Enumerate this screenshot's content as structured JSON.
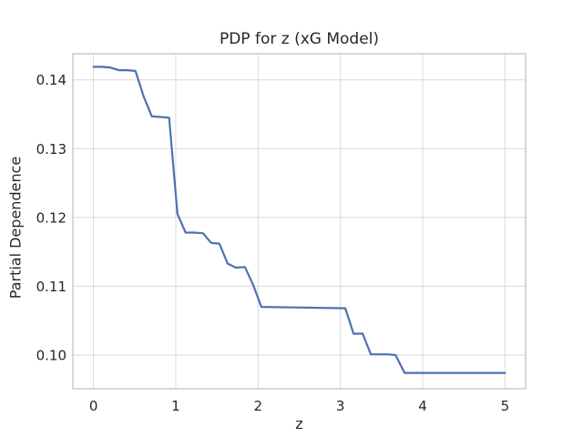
{
  "window": {
    "background": "#ffffff"
  },
  "chart_data": {
    "type": "line",
    "title": "PDP for z (xG Model)",
    "xlabel": "z",
    "ylabel": "Partial Dependence",
    "x_ticks": [
      0,
      1,
      2,
      3,
      4,
      5
    ],
    "x_tick_labels": [
      "0",
      "1",
      "2",
      "3",
      "4",
      "5"
    ],
    "y_ticks": [
      0.1,
      0.11,
      0.12,
      0.13,
      0.14
    ],
    "y_tick_labels": [
      "0.10",
      "0.11",
      "0.12",
      "0.13",
      "0.14"
    ],
    "xlim": [
      -0.25,
      5.25
    ],
    "ylim": [
      0.0951,
      0.1438
    ],
    "grid": true,
    "legend": false,
    "series": [
      {
        "name": "partial-dependence-of-z",
        "color": "#4c72b0",
        "x": [
          0.0,
          0.1,
          0.2,
          0.31,
          0.41,
          0.51,
          0.61,
          0.71,
          0.82,
          0.92,
          1.02,
          1.12,
          1.22,
          1.33,
          1.43,
          1.53,
          1.63,
          1.73,
          1.84,
          1.94,
          2.04,
          2.55,
          3.06,
          3.16,
          3.27,
          3.37,
          3.47,
          3.57,
          3.67,
          3.78,
          4.0,
          4.5,
          5.0
        ],
        "y": [
          0.1419,
          0.1419,
          0.1418,
          0.1414,
          0.1414,
          0.1413,
          0.1376,
          0.1347,
          0.1346,
          0.1345,
          0.1205,
          0.1178,
          0.1178,
          0.1177,
          0.1163,
          0.1162,
          0.1133,
          0.1127,
          0.1128,
          0.1102,
          0.107,
          0.1069,
          0.1068,
          0.1031,
          0.1031,
          0.1001,
          0.1001,
          0.1001,
          0.1,
          0.0974,
          0.0974,
          0.0974,
          0.0974
        ]
      }
    ]
  },
  "style": {
    "line_color": "#4c72b0",
    "grid_color": "#d9d9d9",
    "spine_color": "#c3c3c3",
    "text_color": "#262626"
  }
}
